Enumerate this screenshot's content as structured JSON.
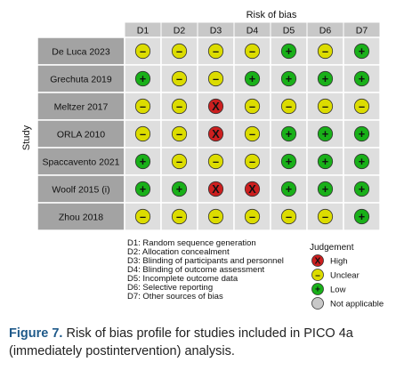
{
  "chart_data": {
    "type": "table",
    "title": "Risk of bias",
    "ylabel": "Study",
    "domains": [
      "D1",
      "D2",
      "D3",
      "D4",
      "D5",
      "D6",
      "D7"
    ],
    "studies": [
      {
        "name": "De Luca 2023",
        "judgements": [
          "-",
          "-",
          "-",
          "-",
          "+",
          "-",
          "+"
        ]
      },
      {
        "name": "Grechuta 2019",
        "judgements": [
          "+",
          "-",
          "-",
          "+",
          "+",
          "+",
          "+"
        ]
      },
      {
        "name": "Meltzer 2017",
        "judgements": [
          "-",
          "-",
          "X",
          "-",
          "-",
          "-",
          "-"
        ]
      },
      {
        "name": "ORLA 2010",
        "judgements": [
          "-",
          "-",
          "X",
          "-",
          "+",
          "+",
          "+"
        ]
      },
      {
        "name": "Spaccavento 2021",
        "judgements": [
          "+",
          "-",
          "-",
          "-",
          "+",
          "+",
          "+"
        ]
      },
      {
        "name": "Woolf 2015 (i)",
        "judgements": [
          "+",
          "+",
          "X",
          "X",
          "+",
          "+",
          "+"
        ]
      },
      {
        "name": "Zhou 2018",
        "judgements": [
          "-",
          "-",
          "-",
          "-",
          "-",
          "-",
          "+"
        ]
      }
    ],
    "domain_descriptions": [
      "D1: Random sequence generation",
      "D2: Allocation concealment",
      "D3: Blinding of participants and personnel",
      "D4: Blinding of outcome assessment",
      "D5: Incomplete outcome data",
      "D6: Selective reporting",
      "D7: Other sources of bias"
    ],
    "legend_title": "Judgement",
    "legend": [
      {
        "symbol": "X",
        "label": "High",
        "color": "#cc1f1f"
      },
      {
        "symbol": "-",
        "label": "Unclear",
        "color": "#dcdc00"
      },
      {
        "symbol": "+",
        "label": "Low",
        "color": "#19b019"
      },
      {
        "symbol": "",
        "label": "Not applicable",
        "color": "#c8c8c8"
      }
    ],
    "colors": {
      "header_bg": "#c8c8c8",
      "study_bg": "#a3a3a3",
      "cell_bg": "#dedede"
    }
  },
  "caption": {
    "label": "Figure 7.",
    "text": "Risk of bias profile for studies included in PICO 4a (immediately postintervention) analysis."
  }
}
